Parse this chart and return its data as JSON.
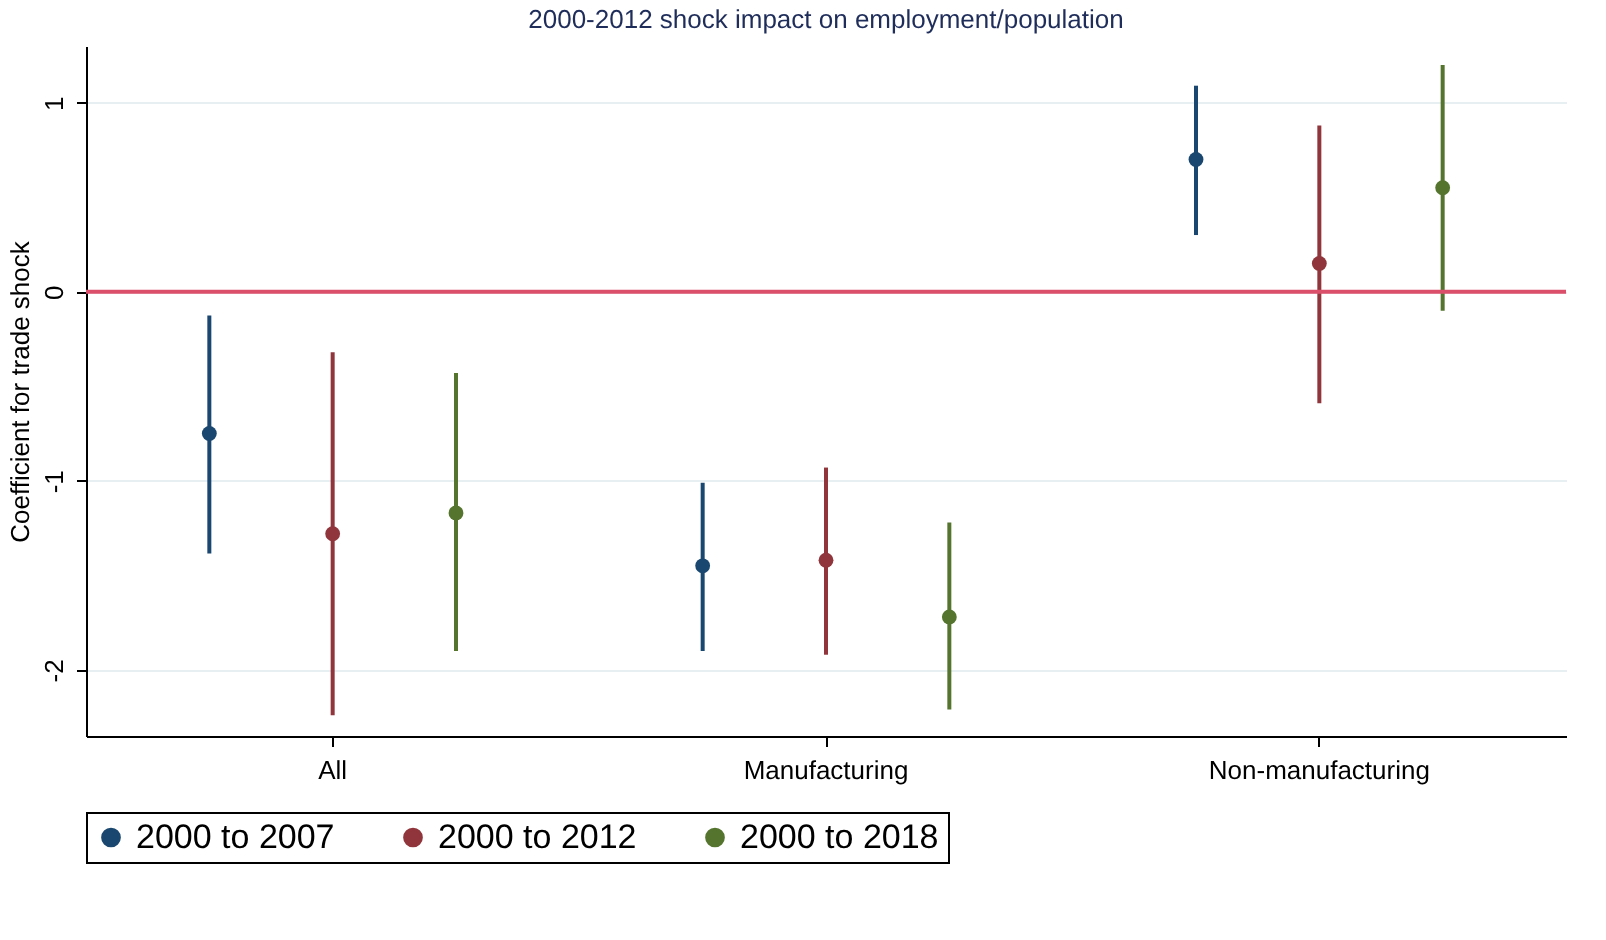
{
  "chart_data": {
    "type": "scatter",
    "title": "2000-2012 shock impact on employment/population",
    "ylabel": "Coefficient for trade shock",
    "categories": [
      "All",
      "Manufacturing",
      "Non-manufacturing"
    ],
    "series": [
      {
        "name": "2000 to 2007",
        "color": "#1a476f",
        "values": [
          -0.75,
          -1.45,
          0.7
        ],
        "errors": [
          [
            -1.385,
            -0.125
          ],
          [
            -1.9,
            -1.01
          ],
          [
            0.3,
            1.09
          ]
        ]
      },
      {
        "name": "2000 to 2012",
        "color": "#90353b",
        "values": [
          -1.28,
          -1.42,
          0.15
        ],
        "errors": [
          [
            -2.24,
            -0.32
          ],
          [
            -1.92,
            -0.93
          ],
          [
            -0.59,
            0.88
          ]
        ]
      },
      {
        "name": "2000 to 2018",
        "color": "#55752f",
        "values": [
          -1.17,
          -1.72,
          0.55
        ],
        "errors": [
          [
            -1.9,
            -0.43
          ],
          [
            -2.21,
            -1.22
          ],
          [
            -0.1,
            1.2
          ]
        ]
      }
    ],
    "ylim": [
      -2.35,
      1.3
    ],
    "yticks": [
      -2,
      -1,
      0,
      1
    ],
    "grid": "y",
    "legend": "bottom",
    "marker": "circle",
    "ref_lines": [
      {
        "axis": "y",
        "value": 0,
        "color": "#dc4f6b"
      }
    ]
  }
}
